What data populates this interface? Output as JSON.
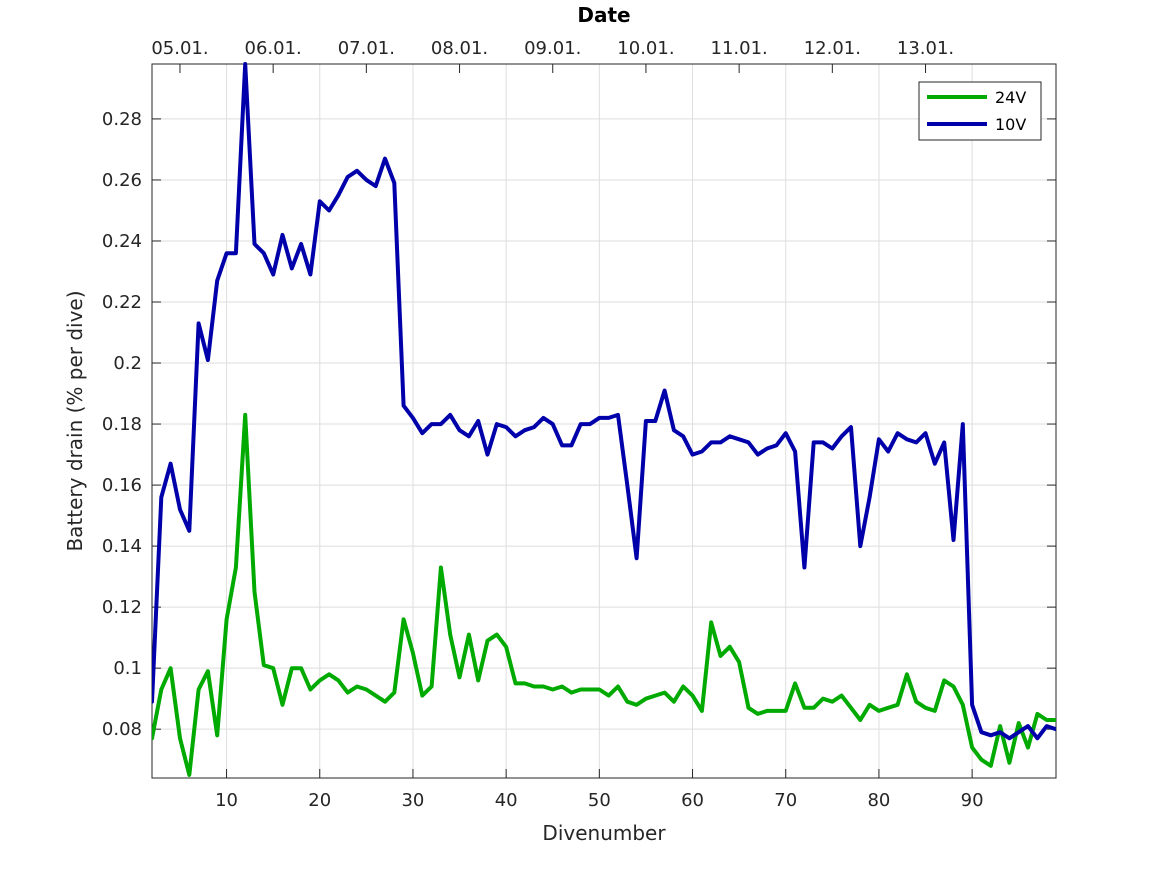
{
  "chart_data": {
    "type": "line",
    "title": "Date",
    "xlabel": "Divenumber",
    "ylabel": "Battery drain (% per dive)",
    "xlim": [
      2,
      99
    ],
    "ylim": [
      0.064,
      0.298
    ],
    "x_ticks": [
      10,
      20,
      30,
      40,
      50,
      60,
      70,
      80,
      90
    ],
    "y_ticks": [
      0.08,
      0.1,
      0.12,
      0.14,
      0.16,
      0.18,
      0.2,
      0.22,
      0.24,
      0.26,
      0.28
    ],
    "top_axis": {
      "label": "Date",
      "ticks": [
        {
          "x": 5.0,
          "label": "05.01."
        },
        {
          "x": 15.0,
          "label": "06.01."
        },
        {
          "x": 25.0,
          "label": "07.01."
        },
        {
          "x": 35.0,
          "label": "08.01."
        },
        {
          "x": 45.0,
          "label": "09.01."
        },
        {
          "x": 55.0,
          "label": "10.01."
        },
        {
          "x": 65.0,
          "label": "11.01."
        },
        {
          "x": 75.0,
          "label": "12.01."
        },
        {
          "x": 85.0,
          "label": "13.01."
        }
      ]
    },
    "grid": true,
    "legend_position": "top-right",
    "series": [
      {
        "name": "24V",
        "color": "#00aa00",
        "x": [
          2,
          3,
          4,
          5,
          6,
          7,
          8,
          9,
          10,
          11,
          12,
          13,
          14,
          15,
          16,
          17,
          18,
          19,
          20,
          21,
          22,
          23,
          24,
          25,
          26,
          27,
          28,
          29,
          30,
          31,
          32,
          33,
          34,
          35,
          36,
          37,
          38,
          39,
          40,
          41,
          42,
          43,
          44,
          45,
          46,
          47,
          48,
          49,
          50,
          51,
          52,
          53,
          54,
          55,
          56,
          57,
          58,
          59,
          60,
          61,
          62,
          63,
          64,
          65,
          66,
          67,
          68,
          69,
          70,
          71,
          72,
          73,
          74,
          75,
          76,
          77,
          78,
          79,
          80,
          81,
          82,
          83,
          84,
          85,
          86,
          87,
          88,
          89,
          90,
          91,
          92,
          93,
          94,
          95,
          96,
          97,
          98,
          99
        ],
        "y": [
          0.077,
          0.093,
          0.1,
          0.077,
          0.065,
          0.093,
          0.099,
          0.078,
          0.116,
          0.133,
          0.183,
          0.125,
          0.101,
          0.1,
          0.088,
          0.1,
          0.1,
          0.093,
          0.096,
          0.098,
          0.096,
          0.092,
          0.094,
          0.093,
          0.091,
          0.089,
          0.092,
          0.116,
          0.105,
          0.091,
          0.094,
          0.133,
          0.111,
          0.097,
          0.111,
          0.096,
          0.109,
          0.111,
          0.107,
          0.095,
          0.095,
          0.094,
          0.094,
          0.093,
          0.094,
          0.092,
          0.093,
          0.093,
          0.093,
          0.091,
          0.094,
          0.089,
          0.088,
          0.09,
          0.091,
          0.092,
          0.089,
          0.094,
          0.091,
          0.086,
          0.115,
          0.104,
          0.107,
          0.102,
          0.087,
          0.085,
          0.086,
          0.086,
          0.086,
          0.095,
          0.087,
          0.087,
          0.09,
          0.089,
          0.091,
          0.087,
          0.083,
          0.088,
          0.086,
          0.087,
          0.088,
          0.098,
          0.089,
          0.087,
          0.086,
          0.096,
          0.094,
          0.088,
          0.074,
          0.07,
          0.068,
          0.081,
          0.069,
          0.082,
          0.074,
          0.085,
          0.083,
          0.083
        ]
      },
      {
        "name": "10V",
        "color": "#0000aa",
        "x": [
          2,
          3,
          4,
          5,
          6,
          7,
          8,
          9,
          10,
          11,
          12,
          13,
          14,
          15,
          16,
          17,
          18,
          19,
          20,
          21,
          22,
          23,
          24,
          25,
          26,
          27,
          28,
          29,
          30,
          31,
          32,
          33,
          34,
          35,
          36,
          37,
          38,
          39,
          40,
          41,
          42,
          43,
          44,
          45,
          46,
          47,
          48,
          49,
          50,
          51,
          52,
          53,
          54,
          55,
          56,
          57,
          58,
          59,
          60,
          61,
          62,
          63,
          64,
          65,
          66,
          67,
          68,
          69,
          70,
          71,
          72,
          73,
          74,
          75,
          76,
          77,
          78,
          79,
          80,
          81,
          82,
          83,
          84,
          85,
          86,
          87,
          88,
          89,
          90,
          91,
          92,
          93,
          94,
          95,
          96,
          97,
          98,
          99
        ],
        "y": [
          0.089,
          0.156,
          0.167,
          0.152,
          0.145,
          0.213,
          0.201,
          0.227,
          0.236,
          0.236,
          0.298,
          0.239,
          0.236,
          0.229,
          0.242,
          0.231,
          0.239,
          0.229,
          0.253,
          0.25,
          0.255,
          0.261,
          0.263,
          0.26,
          0.258,
          0.267,
          0.259,
          0.186,
          0.182,
          0.177,
          0.18,
          0.18,
          0.183,
          0.178,
          0.176,
          0.181,
          0.17,
          0.18,
          0.179,
          0.176,
          0.178,
          0.179,
          0.182,
          0.18,
          0.173,
          0.173,
          0.18,
          0.18,
          0.182,
          0.182,
          0.183,
          0.16,
          0.136,
          0.181,
          0.181,
          0.191,
          0.178,
          0.176,
          0.17,
          0.171,
          0.174,
          0.174,
          0.176,
          0.175,
          0.174,
          0.17,
          0.172,
          0.173,
          0.177,
          0.171,
          0.133,
          0.174,
          0.174,
          0.172,
          0.176,
          0.179,
          0.14,
          0.156,
          0.175,
          0.171,
          0.177,
          0.175,
          0.174,
          0.177,
          0.167,
          0.174,
          0.142,
          0.18,
          0.088,
          0.079,
          0.078,
          0.079,
          0.077,
          0.079,
          0.081,
          0.077,
          0.081,
          0.08
        ]
      }
    ]
  }
}
